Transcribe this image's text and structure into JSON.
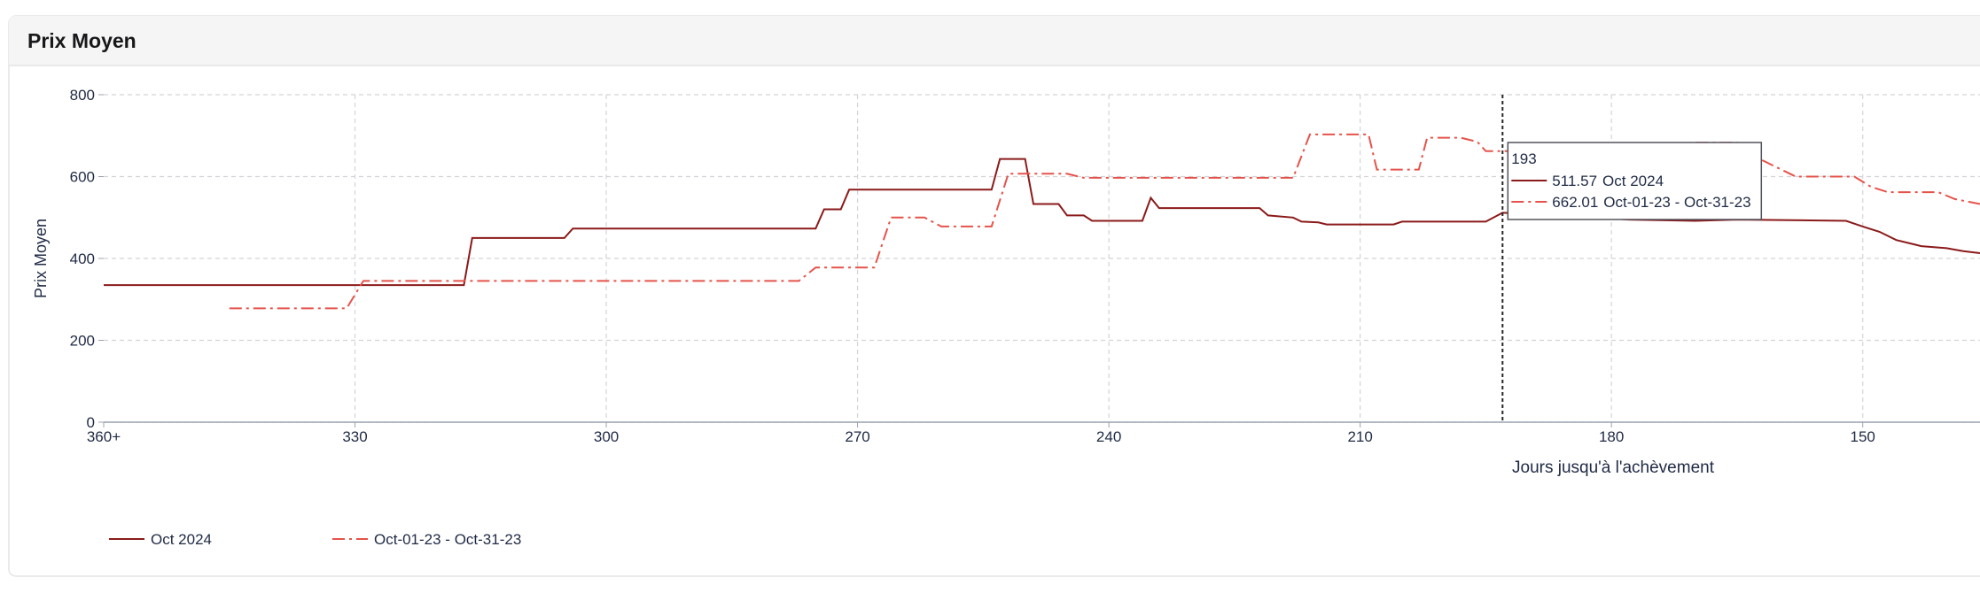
{
  "chart_data": {
    "type": "line",
    "title": "Prix Moyen",
    "x_label": "Jours jusqu'à l'achèvement",
    "y_label": "Prix Moyen",
    "xlim": [
      360,
      136
    ],
    "ylim": [
      0,
      800
    ],
    "xticks": [
      {
        "value": 360,
        "label": "360+"
      },
      330,
      300,
      270,
      240,
      210,
      180,
      150
    ],
    "yticks": [
      0,
      200,
      400,
      600,
      800
    ],
    "grid": true,
    "legend": "bottom-left",
    "series": [
      {
        "name": "Oct 2024",
        "color": "#8b1a1a",
        "dash": "solid",
        "x": [
          360,
          317,
          316,
          305,
          304,
          275,
          274,
          272,
          271,
          254,
          253,
          250,
          249,
          246,
          245,
          243,
          242,
          236,
          235,
          234,
          222,
          221,
          218,
          217,
          215,
          214,
          206,
          205,
          195,
          193,
          185,
          178,
          170,
          165,
          152,
          150,
          148,
          146,
          143,
          140,
          138,
          136
        ],
        "values": [
          335,
          335,
          450,
          450,
          473,
          473,
          520,
          520,
          568,
          568,
          643,
          643,
          533,
          533,
          505,
          505,
          492,
          492,
          548,
          523,
          523,
          505,
          500,
          490,
          488,
          483,
          483,
          490,
          490,
          511.57,
          505,
          495,
          492,
          495,
          492,
          478,
          465,
          445,
          430,
          425,
          418,
          413
        ]
      },
      {
        "name": "Oct-01-23 - Oct-31-23",
        "color": "#e5534b",
        "dash": "dashdot",
        "x": [
          345,
          331,
          329,
          277,
          275,
          268,
          266,
          262,
          260,
          254,
          252,
          245,
          243,
          218,
          216,
          209,
          208,
          203,
          202,
          198,
          196,
          195,
          193,
          185,
          170,
          165,
          162,
          160,
          158,
          151,
          149,
          147,
          141,
          139,
          136
        ],
        "values": [
          278,
          278,
          345,
          345,
          378,
          378,
          500,
          500,
          478,
          478,
          607,
          607,
          597,
          597,
          703,
          703,
          617,
          617,
          695,
          695,
          685,
          662.01,
          662.01,
          665,
          683,
          683,
          640,
          620,
          600,
          600,
          575,
          562,
          562,
          545,
          533
        ]
      }
    ],
    "tooltip": {
      "x": 193,
      "values": [
        511.57,
        662.01
      ]
    }
  }
}
